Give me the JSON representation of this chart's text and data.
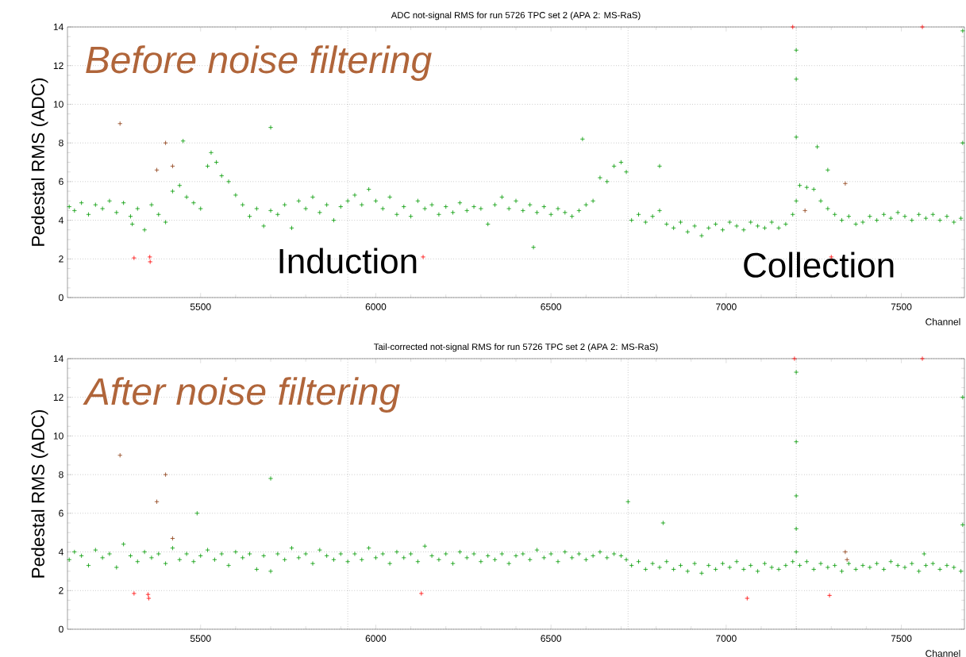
{
  "chart_data": [
    {
      "type": "scatter",
      "title": "ADC not-signal RMS for run 5726 TPC set 2 (APA 2: MS-RaS)",
      "xlabel": "Channel",
      "ylabel": "Pedestal RMS (ADC)",
      "annotations": [
        "Before noise filtering",
        "Induction",
        "Collection"
      ],
      "xlim": [
        5120,
        7680
      ],
      "ylim": [
        0,
        14
      ],
      "xticks": [
        5500,
        6000,
        6500,
        7000,
        7500
      ],
      "yticks": [
        0,
        2,
        4,
        6,
        8,
        10,
        12,
        14
      ],
      "grid": "y",
      "marker": "cross",
      "ref_lines": [
        {
          "axis": "x",
          "value": 5920,
          "line_style": "dotted"
        },
        {
          "axis": "x",
          "value": 6720,
          "line_style": "dotted"
        },
        {
          "axis": "x",
          "value": 7200,
          "line_style": "dotted"
        }
      ],
      "series": [
        {
          "color": "#009900",
          "x": [
            5125,
            5140,
            5160,
            5180,
            5200,
            5220,
            5240,
            5260,
            5280,
            5300,
            5305,
            5320,
            5340,
            5360,
            5380,
            5400,
            5420,
            5440,
            5460,
            5480,
            5500,
            5520,
            5530,
            5545,
            5560,
            5580,
            5600,
            5620,
            5640,
            5660,
            5680,
            5700,
            5720,
            5740,
            5760,
            5780,
            5800,
            5820,
            5840,
            5860,
            5880,
            5900,
            5920,
            5940,
            5960,
            5980,
            6000,
            6020,
            6040,
            6060,
            6080,
            6100,
            6120,
            6140,
            6160,
            6180,
            6200,
            6220,
            6240,
            6260,
            6280,
            6300,
            6320,
            6340,
            6360,
            6380,
            6400,
            6420,
            6440,
            6460,
            6480,
            6500,
            6520,
            6540,
            6560,
            6580,
            6600,
            6620,
            6640,
            6660,
            6680,
            6700,
            6715,
            6730,
            6750,
            6770,
            6790,
            6810,
            6830,
            6850,
            6870,
            6890,
            6910,
            6930,
            6950,
            6970,
            6990,
            7010,
            7030,
            7050,
            7070,
            7090,
            7110,
            7130,
            7150,
            7170,
            7190,
            7200,
            7200,
            7200,
            7200,
            7210,
            7230,
            7250,
            7270,
            7290,
            7310,
            7330,
            7350,
            7370,
            7390,
            7410,
            7430,
            7450,
            7470,
            7490,
            7510,
            7530,
            7550,
            7570,
            7590,
            7610,
            7630,
            7650,
            7670,
            7675,
            7675,
            5450,
            5700,
            6590,
            6810,
            7260,
            6450,
            7290
          ],
          "values": [
            4.7,
            4.5,
            4.9,
            4.3,
            4.8,
            4.6,
            5.0,
            4.4,
            4.9,
            4.2,
            3.8,
            4.6,
            3.5,
            4.8,
            4.3,
            3.9,
            5.5,
            5.8,
            5.2,
            4.9,
            4.6,
            6.8,
            7.5,
            7.0,
            6.3,
            6.0,
            5.3,
            4.8,
            4.2,
            4.6,
            3.7,
            4.5,
            4.3,
            4.8,
            3.6,
            5.0,
            4.6,
            5.2,
            4.4,
            4.8,
            4.0,
            4.7,
            5.0,
            5.3,
            4.8,
            5.6,
            5.0,
            4.6,
            5.2,
            4.3,
            4.7,
            4.2,
            5.0,
            4.6,
            4.8,
            4.3,
            4.7,
            4.4,
            4.9,
            4.5,
            4.7,
            4.6,
            3.8,
            4.8,
            5.2,
            4.6,
            5.0,
            4.5,
            4.8,
            4.4,
            4.7,
            4.3,
            4.6,
            4.4,
            4.2,
            4.5,
            4.8,
            5.0,
            6.2,
            6.0,
            6.8,
            7.0,
            6.5,
            4.0,
            4.3,
            3.9,
            4.2,
            4.5,
            3.8,
            3.6,
            3.9,
            3.4,
            3.7,
            3.2,
            3.6,
            3.8,
            3.5,
            3.9,
            3.7,
            3.5,
            3.9,
            3.7,
            3.6,
            3.9,
            3.6,
            3.8,
            4.3,
            5.0,
            8.3,
            11.3,
            12.8,
            5.8,
            5.7,
            5.6,
            5.0,
            4.6,
            4.3,
            4.0,
            4.2,
            3.8,
            3.9,
            4.2,
            4.0,
            4.3,
            4.1,
            4.4,
            4.2,
            4.0,
            4.3,
            4.1,
            4.3,
            4.0,
            4.2,
            3.9,
            4.1,
            8.0,
            13.8,
            8.1,
            8.8,
            8.2,
            6.8,
            7.8,
            2.6,
            6.6
          ]
        },
        {
          "color": "#ff0000",
          "x": [
            5310,
            5355,
            5356,
            6135,
            7300,
            7190,
            7560
          ],
          "values": [
            2.05,
            2.1,
            1.85,
            2.1,
            2.1,
            14,
            14
          ]
        },
        {
          "color": "#8b3a0f",
          "x": [
            5270,
            5400,
            5375,
            5420,
            7340,
            7225
          ],
          "values": [
            9.0,
            8.0,
            6.6,
            6.8,
            5.9,
            4.5
          ]
        }
      ]
    },
    {
      "type": "scatter",
      "title": "Tail-corrected not-signal RMS for run 5726 TPC set 2 (APA 2: MS-RaS)",
      "xlabel": "Channel",
      "ylabel": "Pedestal RMS (ADC)",
      "annotations": [
        "After noise filtering"
      ],
      "xlim": [
        5120,
        7680
      ],
      "ylim": [
        0,
        14
      ],
      "xticks": [
        5500,
        6000,
        6500,
        7000,
        7500
      ],
      "yticks": [
        0,
        2,
        4,
        6,
        8,
        10,
        12,
        14
      ],
      "grid": "y",
      "marker": "cross",
      "ref_lines": [
        {
          "axis": "x",
          "value": 5920,
          "line_style": "dotted"
        },
        {
          "axis": "x",
          "value": 6720,
          "line_style": "dotted"
        },
        {
          "axis": "x",
          "value": 7200,
          "line_style": "dotted"
        }
      ],
      "series": [
        {
          "color": "#009900",
          "x": [
            5125,
            5140,
            5160,
            5180,
            5200,
            5220,
            5240,
            5260,
            5280,
            5300,
            5320,
            5340,
            5360,
            5380,
            5400,
            5420,
            5440,
            5460,
            5480,
            5500,
            5520,
            5540,
            5560,
            5580,
            5600,
            5620,
            5640,
            5660,
            5680,
            5700,
            5720,
            5740,
            5760,
            5780,
            5800,
            5820,
            5840,
            5860,
            5880,
            5900,
            5920,
            5940,
            5960,
            5980,
            6000,
            6020,
            6040,
            6060,
            6080,
            6100,
            6120,
            6140,
            6160,
            6180,
            6200,
            6220,
            6240,
            6260,
            6280,
            6300,
            6320,
            6340,
            6360,
            6380,
            6400,
            6420,
            6440,
            6460,
            6480,
            6500,
            6520,
            6540,
            6560,
            6580,
            6600,
            6620,
            6640,
            6660,
            6680,
            6700,
            6715,
            6730,
            6750,
            6770,
            6790,
            6810,
            6830,
            6850,
            6870,
            6890,
            6910,
            6930,
            6950,
            6970,
            6990,
            7010,
            7030,
            7050,
            7070,
            7090,
            7110,
            7130,
            7150,
            7170,
            7190,
            7200,
            7200,
            7200,
            7200,
            7200,
            7210,
            7230,
            7250,
            7270,
            7290,
            7310,
            7330,
            7350,
            7370,
            7390,
            7410,
            7430,
            7450,
            7470,
            7490,
            7510,
            7530,
            7550,
            7570,
            7590,
            7610,
            7630,
            7650,
            7670,
            7675,
            7675,
            5700,
            5490,
            6720,
            6820,
            7565
          ],
          "values": [
            3.6,
            4.0,
            3.8,
            3.3,
            4.1,
            3.7,
            3.9,
            3.2,
            4.4,
            3.8,
            3.5,
            4.0,
            3.7,
            3.9,
            3.4,
            4.2,
            3.6,
            3.9,
            3.5,
            3.8,
            4.1,
            3.6,
            3.9,
            3.3,
            4.0,
            3.7,
            3.9,
            3.1,
            3.8,
            3.0,
            3.9,
            3.6,
            4.2,
            3.7,
            3.9,
            3.4,
            4.1,
            3.8,
            3.6,
            3.9,
            3.5,
            3.9,
            3.6,
            4.2,
            3.7,
            3.9,
            3.4,
            4.0,
            3.7,
            3.9,
            3.5,
            4.3,
            3.8,
            3.6,
            3.9,
            3.4,
            4.0,
            3.7,
            3.9,
            3.5,
            3.8,
            3.6,
            3.9,
            3.4,
            3.8,
            3.9,
            3.6,
            4.1,
            3.7,
            3.9,
            3.5,
            4.0,
            3.7,
            3.9,
            3.6,
            3.8,
            4.0,
            3.7,
            3.9,
            3.8,
            3.6,
            3.3,
            3.5,
            3.1,
            3.4,
            3.2,
            3.5,
            3.1,
            3.3,
            3.0,
            3.4,
            2.9,
            3.3,
            3.1,
            3.4,
            3.2,
            3.5,
            3.1,
            3.3,
            3.0,
            3.4,
            3.2,
            3.1,
            3.3,
            3.5,
            4.0,
            5.2,
            6.9,
            9.7,
            13.3,
            3.3,
            3.5,
            3.1,
            3.4,
            3.2,
            3.3,
            3.0,
            3.4,
            3.1,
            3.3,
            3.2,
            3.4,
            3.1,
            3.5,
            3.3,
            3.2,
            3.4,
            3.0,
            3.3,
            3.4,
            3.1,
            3.3,
            3.2,
            3.0,
            5.4,
            12.0,
            7.8,
            6.0,
            6.6,
            5.5,
            3.9
          ]
        },
        {
          "color": "#ff0000",
          "x": [
            5310,
            5350,
            5352,
            6130,
            7060,
            7295,
            7195,
            7560
          ],
          "values": [
            1.85,
            1.8,
            1.6,
            1.85,
            1.6,
            1.75,
            14,
            14
          ]
        },
        {
          "color": "#8b3a0f",
          "x": [
            5270,
            5400,
            5375,
            5420,
            7340,
            7345
          ],
          "values": [
            9.0,
            8.0,
            6.6,
            4.7,
            4.0,
            3.6
          ]
        }
      ]
    }
  ]
}
